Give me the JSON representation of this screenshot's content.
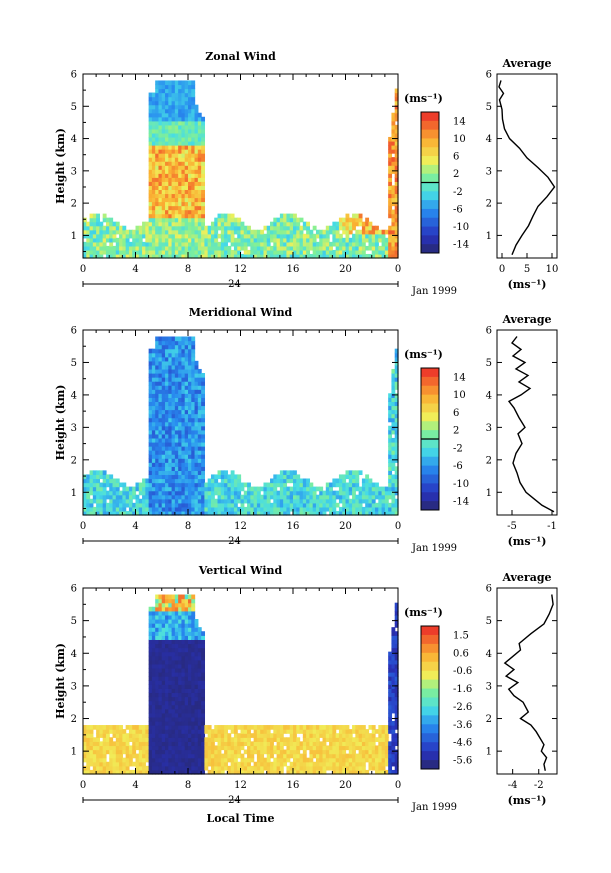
{
  "figure": {
    "date_label": "Jan 1999",
    "day_label": "24",
    "xlabel": "Local Time",
    "ylabel": "Height (km)",
    "avg_title": "Average",
    "unit": "(ms⁻¹)"
  },
  "chart_data": [
    {
      "type": "heatmap",
      "title": "Zonal Wind",
      "ylabel": "Height (km)",
      "xlabel": "",
      "xlim": [
        0,
        24
      ],
      "ylim": [
        0.3,
        6
      ],
      "xticks": [
        "0",
        "4",
        "8",
        "12",
        "16",
        "20",
        "0"
      ],
      "yticks": [
        "1",
        "2",
        "3",
        "4",
        "5",
        "6"
      ],
      "colorbar": {
        "unit": "(ms⁻¹)",
        "labels": [
          "14",
          "10",
          "6",
          "2",
          "-2",
          "-6",
          "-10",
          "-14"
        ],
        "range": [
          -16,
          16
        ]
      },
      "profile": {
        "title": "Average",
        "xlabel": "(ms⁻¹)",
        "xticks": [
          "0",
          "5",
          "10"
        ],
        "xlim": [
          -1,
          11
        ],
        "height": [
          0.4,
          0.7,
          1.0,
          1.3,
          1.6,
          1.9,
          2.2,
          2.5,
          2.8,
          3.1,
          3.4,
          3.7,
          4.0,
          4.3,
          4.6,
          4.9,
          5.2,
          5.4,
          5.6,
          5.8
        ],
        "value": [
          2.0,
          2.8,
          4.0,
          5.3,
          6.2,
          7.2,
          9.0,
          10.5,
          9.2,
          7.2,
          5.0,
          3.5,
          1.5,
          0.5,
          0.1,
          0.0,
          -0.5,
          0.3,
          -0.6,
          -0.2
        ]
      }
    },
    {
      "type": "heatmap",
      "title": "Meridional Wind",
      "ylabel": "Height (km)",
      "xlabel": "",
      "xlim": [
        0,
        24
      ],
      "ylim": [
        0.3,
        6
      ],
      "xticks": [
        "0",
        "4",
        "8",
        "12",
        "16",
        "20",
        "0"
      ],
      "yticks": [
        "1",
        "2",
        "3",
        "4",
        "5",
        "6"
      ],
      "colorbar": {
        "unit": "(ms⁻¹)",
        "labels": [
          "14",
          "10",
          "6",
          "2",
          "-2",
          "-6",
          "-10",
          "-14"
        ],
        "range": [
          -16,
          16
        ]
      },
      "profile": {
        "title": "Average",
        "xlabel": "(ms⁻¹)",
        "xticks": [
          "-5",
          "-1"
        ],
        "xlim": [
          -6.5,
          -0.5
        ],
        "height": [
          0.4,
          0.6,
          0.8,
          1.0,
          1.3,
          1.6,
          1.9,
          2.2,
          2.5,
          2.8,
          3.0,
          3.3,
          3.6,
          3.8,
          4.0,
          4.2,
          4.4,
          4.6,
          4.8,
          5.0,
          5.2,
          5.4,
          5.6,
          5.8
        ],
        "value": [
          -0.8,
          -2.0,
          -2.8,
          -3.6,
          -4.2,
          -4.5,
          -4.9,
          -4.6,
          -4.0,
          -4.4,
          -3.7,
          -4.3,
          -4.8,
          -5.3,
          -4.1,
          -3.2,
          -4.3,
          -3.4,
          -4.6,
          -3.7,
          -4.9,
          -4.1,
          -5.0,
          -4.5
        ]
      }
    },
    {
      "type": "heatmap",
      "title": "Vertical Wind",
      "ylabel": "Height (km)",
      "xlabel": "Local Time",
      "xlim": [
        0,
        24
      ],
      "ylim": [
        0.3,
        6
      ],
      "xticks": [
        "0",
        "4",
        "8",
        "12",
        "16",
        "20",
        "0"
      ],
      "yticks": [
        "1",
        "2",
        "3",
        "4",
        "5",
        "6"
      ],
      "colorbar": {
        "unit": "(ms⁻¹)",
        "labels": [
          "1.5",
          "0.6",
          "-0.6",
          "-1.6",
          "-2.6",
          "-3.6",
          "-4.6",
          "-5.6"
        ],
        "range": [
          -6,
          2
        ]
      },
      "profile": {
        "title": "Average",
        "xlabel": "(ms⁻¹)",
        "xticks": [
          "-4",
          "-2"
        ],
        "xlim": [
          -5.2,
          -0.6
        ],
        "height": [
          0.4,
          0.6,
          0.8,
          1.0,
          1.2,
          1.4,
          1.6,
          1.8,
          2.0,
          2.2,
          2.5,
          2.7,
          2.9,
          3.1,
          3.3,
          3.5,
          3.7,
          3.9,
          4.1,
          4.3,
          4.6,
          4.9,
          5.2,
          5.5,
          5.8
        ],
        "value": [
          -1.5,
          -1.6,
          -1.4,
          -1.8,
          -1.6,
          -1.9,
          -2.2,
          -2.6,
          -3.4,
          -2.8,
          -3.2,
          -3.9,
          -4.3,
          -3.6,
          -4.5,
          -3.9,
          -4.6,
          -4.0,
          -3.4,
          -3.5,
          -2.6,
          -1.6,
          -1.2,
          -0.9,
          -1.0
        ]
      }
    }
  ]
}
